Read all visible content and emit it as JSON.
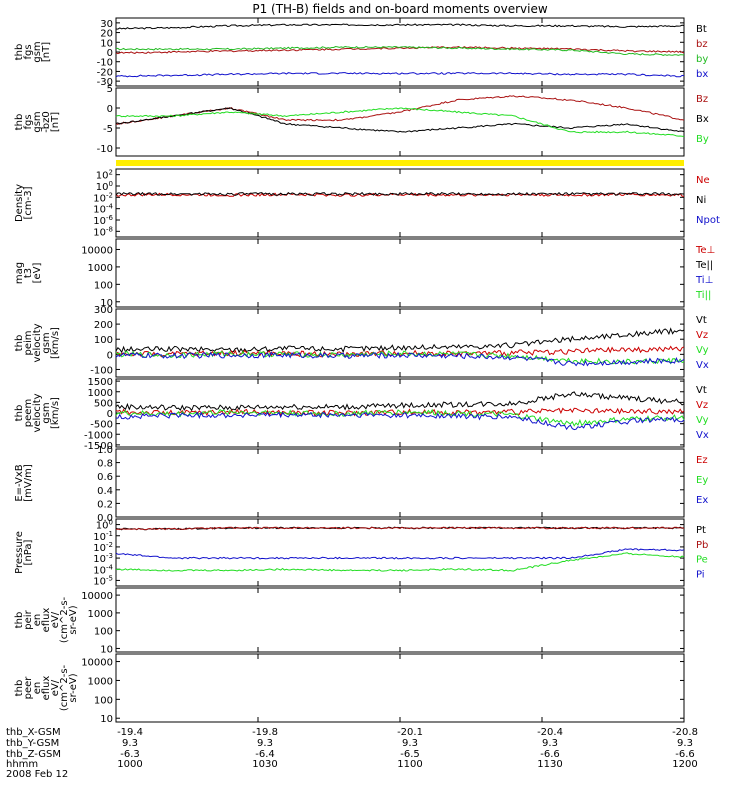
{
  "title": "P1 (TH-B) fields and on-board moments overview",
  "colors": {
    "black": "#000000",
    "red": "#cc0000",
    "darkred": "#aa1111",
    "green": "#22dd22",
    "blue": "#1111cc",
    "yellow": "#ffee00"
  },
  "chart_data": [
    {
      "type": "line",
      "ylabel": [
        "thb",
        "fgs",
        "gsm",
        "[nT]"
      ],
      "ylim": [
        -35,
        35
      ],
      "yticks": [
        "30",
        "20",
        "10",
        "0",
        "-10",
        "-20",
        "-30"
      ],
      "yticks_values": [
        30,
        20,
        10,
        0,
        -10,
        -20,
        -30
      ],
      "series": [
        {
          "name": "Bt",
          "color": "#000000",
          "values": [
            24,
            25,
            27,
            28,
            28,
            28,
            28,
            27,
            27,
            26,
            27
          ]
        },
        {
          "name": "bz",
          "color": "#aa1111",
          "values": [
            -1,
            0,
            1,
            2,
            3,
            4,
            5,
            4,
            3,
            1,
            0
          ]
        },
        {
          "name": "by",
          "color": "#22bb22",
          "values": [
            3,
            3,
            3,
            4,
            5,
            5,
            4,
            3,
            2,
            -2,
            -3
          ]
        },
        {
          "name": "bx",
          "color": "#1111cc",
          "values": [
            -25,
            -24,
            -23,
            -22,
            -22,
            -22,
            -22,
            -22,
            -23,
            -23,
            -25
          ]
        }
      ]
    },
    {
      "type": "line",
      "ylabel": [
        "thb",
        "fgs",
        "gsm",
        "-bz0",
        "[nT]"
      ],
      "ylim": [
        -12,
        5
      ],
      "yticks": [
        "5",
        "0",
        "-5",
        "-10"
      ],
      "yticks_values": [
        5,
        0,
        -5,
        -10
      ],
      "series": [
        {
          "name": "Bz",
          "color": "#aa1111",
          "values": [
            -4,
            -2,
            0,
            -3,
            -3,
            -1,
            2,
            3,
            2,
            0,
            -3
          ]
        },
        {
          "name": "Bx",
          "color": "#000000",
          "values": [
            -4,
            -2,
            0,
            -4,
            -5,
            -6,
            -5,
            -4,
            -5,
            -4,
            -6
          ]
        },
        {
          "name": "By",
          "color": "#22dd22",
          "values": [
            -2,
            -2,
            -1,
            -2,
            -1,
            0,
            -1,
            -2,
            -6,
            -6,
            -7
          ]
        }
      ]
    },
    {
      "type": "line",
      "ylabel": [
        "Density",
        "[cm-3]"
      ],
      "yscale": "log",
      "ylim": [
        -9,
        3
      ],
      "yticks": [
        "10^2",
        "10^0",
        "10^-2",
        "10^-4",
        "10^-6",
        "10^-8"
      ],
      "yticks_values": [
        2,
        0,
        -2,
        -4,
        -6,
        -8
      ],
      "series": [
        {
          "name": "Ne",
          "color": "#cc0000",
          "values": [
            -1.6,
            -1.5,
            -1.6,
            -1.5,
            -1.6,
            -1.5,
            -1.6,
            -1.5,
            -1.6,
            -1.5,
            -1.6
          ]
        },
        {
          "name": "Ni",
          "color": "#000000",
          "values": [
            -1.4,
            -1.4,
            -1.4,
            -1.4,
            -1.4,
            -1.4,
            -1.4,
            -1.4,
            -1.4,
            -1.4,
            -1.4
          ]
        },
        {
          "name": "Npot",
          "color": "#1111cc",
          "values": []
        }
      ]
    },
    {
      "type": "line",
      "ylabel": [
        "mag",
        "t3",
        "[eV]"
      ],
      "yscale": "log",
      "ylim": [
        0.7,
        4.6
      ],
      "yticks": [
        "10000",
        "1000",
        "100",
        "10"
      ],
      "yticks_values": [
        4,
        3,
        2,
        1
      ],
      "series": [
        {
          "name": "Te⊥",
          "color": "#cc0000",
          "values": []
        },
        {
          "name": "Te||",
          "color": "#000000",
          "values": []
        },
        {
          "name": "Ti⊥",
          "color": "#1111cc",
          "values": []
        },
        {
          "name": "Ti||",
          "color": "#22dd22",
          "values": []
        }
      ]
    },
    {
      "type": "line",
      "ylabel": [
        "thb",
        "peim",
        "velocity",
        "gsm",
        "[km/s]"
      ],
      "ylim": [
        -150,
        300
      ],
      "yticks": [
        "300",
        "200",
        "100",
        "0",
        "-100"
      ],
      "yticks_values": [
        300,
        200,
        100,
        0,
        -100
      ],
      "series": [
        {
          "name": "Vt",
          "color": "#000000",
          "values": [
            30,
            35,
            30,
            40,
            35,
            45,
            50,
            60,
            100,
            130,
            160
          ]
        },
        {
          "name": "Vz",
          "color": "#cc0000",
          "values": [
            5,
            0,
            10,
            5,
            0,
            10,
            5,
            10,
            20,
            30,
            35
          ]
        },
        {
          "name": "Vy",
          "color": "#22dd22",
          "values": [
            0,
            -5,
            5,
            0,
            -5,
            5,
            0,
            -10,
            -40,
            -50,
            -40
          ]
        },
        {
          "name": "Vx",
          "color": "#1111cc",
          "values": [
            -5,
            -10,
            -5,
            -5,
            -10,
            -5,
            -10,
            -20,
            -60,
            -50,
            -40
          ]
        }
      ]
    },
    {
      "type": "line",
      "ylabel": [
        "thb",
        "peem",
        "velocity",
        "gsm",
        "[km/s]"
      ],
      "ylim": [
        -1600,
        1600
      ],
      "yticks": [
        "1500",
        "1000",
        "500",
        "0",
        "-500",
        "-1000",
        "-1500"
      ],
      "yticks_values": [
        1500,
        1000,
        500,
        0,
        -500,
        -1000,
        -1500
      ],
      "series": [
        {
          "name": "Vt",
          "color": "#000000",
          "values": [
            300,
            250,
            250,
            300,
            280,
            350,
            400,
            450,
            900,
            700,
            500
          ]
        },
        {
          "name": "Vz",
          "color": "#cc0000",
          "values": [
            50,
            0,
            50,
            20,
            0,
            50,
            20,
            50,
            100,
            80,
            60
          ]
        },
        {
          "name": "Vy",
          "color": "#22dd22",
          "values": [
            0,
            -50,
            50,
            0,
            -50,
            50,
            0,
            -100,
            -500,
            -300,
            -200
          ]
        },
        {
          "name": "Vx",
          "color": "#1111cc",
          "values": [
            -200,
            -100,
            -100,
            -100,
            -100,
            -100,
            -150,
            -200,
            -700,
            -400,
            -300
          ]
        }
      ]
    },
    {
      "type": "line",
      "ylabel": [
        "E=-VxB",
        "[mV/m]"
      ],
      "ylim": [
        0,
        1.0
      ],
      "yticks": [
        "1.0",
        "0.8",
        "0.6",
        "0.4",
        "0.2",
        "0.0"
      ],
      "yticks_values": [
        1.0,
        0.8,
        0.6,
        0.4,
        0.2,
        0.0
      ],
      "series": [
        {
          "name": "Ez",
          "color": "#cc0000",
          "values": []
        },
        {
          "name": "Ey",
          "color": "#22dd22",
          "values": []
        },
        {
          "name": "Ex",
          "color": "#1111cc",
          "values": []
        }
      ]
    },
    {
      "type": "line",
      "ylabel": [
        "Pressure",
        "[nPa]"
      ],
      "yscale": "log",
      "ylim": [
        -5.5,
        0.5
      ],
      "yticks": [
        "10^0",
        "10^-1",
        "10^-2",
        "10^-3",
        "10^-4",
        "10^-5"
      ],
      "yticks_values": [
        0,
        -1,
        -2,
        -3,
        -4,
        -5
      ],
      "series": [
        {
          "name": "Pt",
          "color": "#000000",
          "values": [
            -0.4,
            -0.4,
            -0.3,
            -0.3,
            -0.3,
            -0.3,
            -0.3,
            -0.3,
            -0.3,
            -0.3,
            -0.3
          ]
        },
        {
          "name": "Pb",
          "color": "#aa1111",
          "values": [
            -0.4,
            -0.4,
            -0.3,
            -0.3,
            -0.3,
            -0.3,
            -0.3,
            -0.3,
            -0.3,
            -0.3,
            -0.3
          ]
        },
        {
          "name": "Pe",
          "color": "#22dd22",
          "values": [
            -4,
            -4.1,
            -4.1,
            -4.0,
            -4.1,
            -4.1,
            -4.0,
            -4.1,
            -3.2,
            -2.6,
            -2.9
          ]
        },
        {
          "name": "Pi",
          "color": "#1111cc",
          "values": [
            -2.6,
            -3.0,
            -3.0,
            -3.0,
            -3.0,
            -3.0,
            -3.0,
            -3.0,
            -3.0,
            -2.2,
            -2.3
          ]
        }
      ]
    },
    {
      "type": "line",
      "ylabel": [
        "thb",
        "peir",
        "en",
        "eflux",
        "eV/",
        "(cm^2-s-",
        "sr-eV)"
      ],
      "yscale": "log",
      "ylim": [
        0.8,
        4.4
      ],
      "yticks": [
        "10000",
        "1000",
        "100",
        "10"
      ],
      "yticks_values": [
        4,
        3,
        2,
        1
      ],
      "series": []
    },
    {
      "type": "line",
      "ylabel": [
        "thb",
        "peer",
        "en",
        "eflux",
        "eV/",
        "(cm^2-s-",
        "sr-eV)"
      ],
      "yscale": "log",
      "ylim": [
        0.8,
        4.4
      ],
      "yticks": [
        "10000",
        "1000",
        "100",
        "10"
      ],
      "yticks_values": [
        4,
        3,
        2,
        1
      ],
      "series": []
    }
  ],
  "footer": {
    "row_labels": [
      "thb_X-GSM",
      "thb_Y-GSM",
      "thb_Z-GSM",
      "hhmm",
      "2008 Feb 12"
    ],
    "columns": [
      {
        "x": "-19.4",
        "y": "9.3",
        "z": "-6.3",
        "t": "1000"
      },
      {
        "x": "-19.8",
        "y": "9.3",
        "z": "-6.4",
        "t": "1030"
      },
      {
        "x": "-20.1",
        "y": "9.3",
        "z": "-6.5",
        "t": "1100"
      },
      {
        "x": "-20.4",
        "y": "9.3",
        "z": "-6.6",
        "t": "1130"
      },
      {
        "x": "-20.8",
        "y": "9.3",
        "z": "-6.6",
        "t": "1200"
      }
    ]
  }
}
